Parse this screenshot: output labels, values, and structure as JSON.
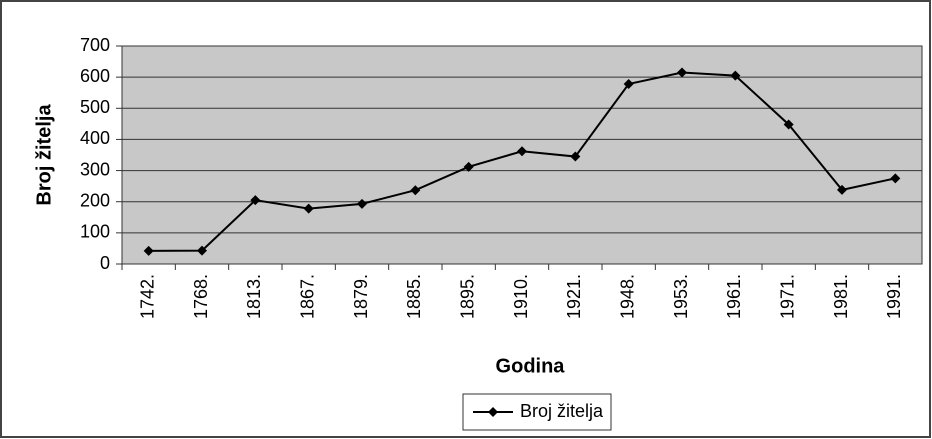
{
  "chart_data": {
    "type": "line",
    "x_label": "Godina",
    "y_label": "Broj žitelja",
    "categories": [
      "1742.",
      "1768.",
      "1813.",
      "1867.",
      "1879.",
      "1885.",
      "1895.",
      "1910.",
      "1921.",
      "1948.",
      "1953.",
      "1961.",
      "1971.",
      "1981.",
      "1991."
    ],
    "series": [
      {
        "name": "Broj žitelja",
        "color": "#000000",
        "values": [
          42,
          43,
          205,
          178,
          193,
          237,
          312,
          362,
          345,
          578,
          615,
          605,
          448,
          238,
          275
        ]
      }
    ],
    "ylim": [
      0,
      700
    ],
    "yticks": [
      0,
      100,
      200,
      300,
      400,
      500,
      600,
      700
    ],
    "grid": true,
    "legend": "bottom"
  }
}
